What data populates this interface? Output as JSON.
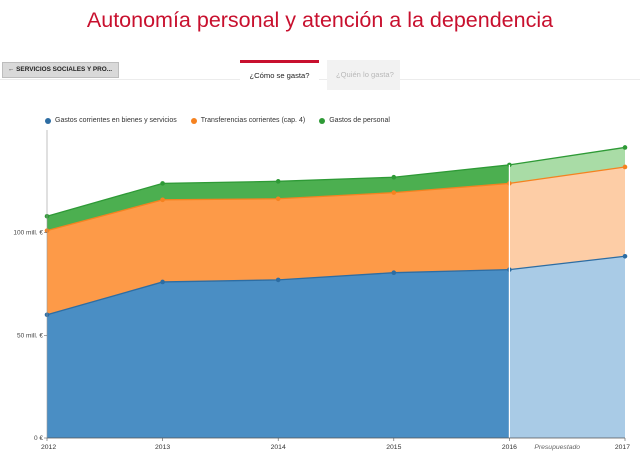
{
  "page": {
    "title": "Autonomía personal y atención a la dependencia",
    "back_button": "← SERVICIOS SOCIALES Y PRO..."
  },
  "tabs": [
    {
      "label": "¿Cómo se gasta?",
      "active": true
    },
    {
      "label": "¿Quién lo gasta?",
      "active": false
    }
  ],
  "colors": {
    "accent": "#c8102e",
    "blue": "#4a8ec4",
    "orange": "#fd9a48",
    "green": "#4caf50",
    "blue_light": "#a9cbe6",
    "orange_light": "#fdcda6",
    "green_light": "#a9dca6",
    "blue_line": "#2d6da3",
    "orange_line": "#f58220",
    "green_line": "#2e9a36"
  },
  "chart_data": {
    "type": "area",
    "stacked": true,
    "x": [
      "2012",
      "2013",
      "2014",
      "2015",
      "2016",
      "2017"
    ],
    "series": [
      {
        "name": "Gastos corrientes en bienes y servicios",
        "values": [
          60,
          76,
          77,
          80.5,
          82,
          88.5
        ]
      },
      {
        "name": "Transferencias corrientes (cap. 4)",
        "values": [
          41,
          40,
          39.5,
          39,
          42,
          43.5
        ]
      },
      {
        "name": "Gastos de personal",
        "values": [
          7,
          8,
          8.5,
          7.5,
          9,
          9.5
        ]
      }
    ],
    "ylim": [
      0,
      150
    ],
    "y_ticks": [
      {
        "value": 0,
        "label": "0 €"
      },
      {
        "value": 50,
        "label": "50 mill. €"
      },
      {
        "value": 100,
        "label": "100 mill. €"
      }
    ],
    "annotation": {
      "label": "Presupuestado",
      "range": [
        "2016",
        "2017"
      ]
    },
    "legend_position": "top-left",
    "grid": false
  }
}
